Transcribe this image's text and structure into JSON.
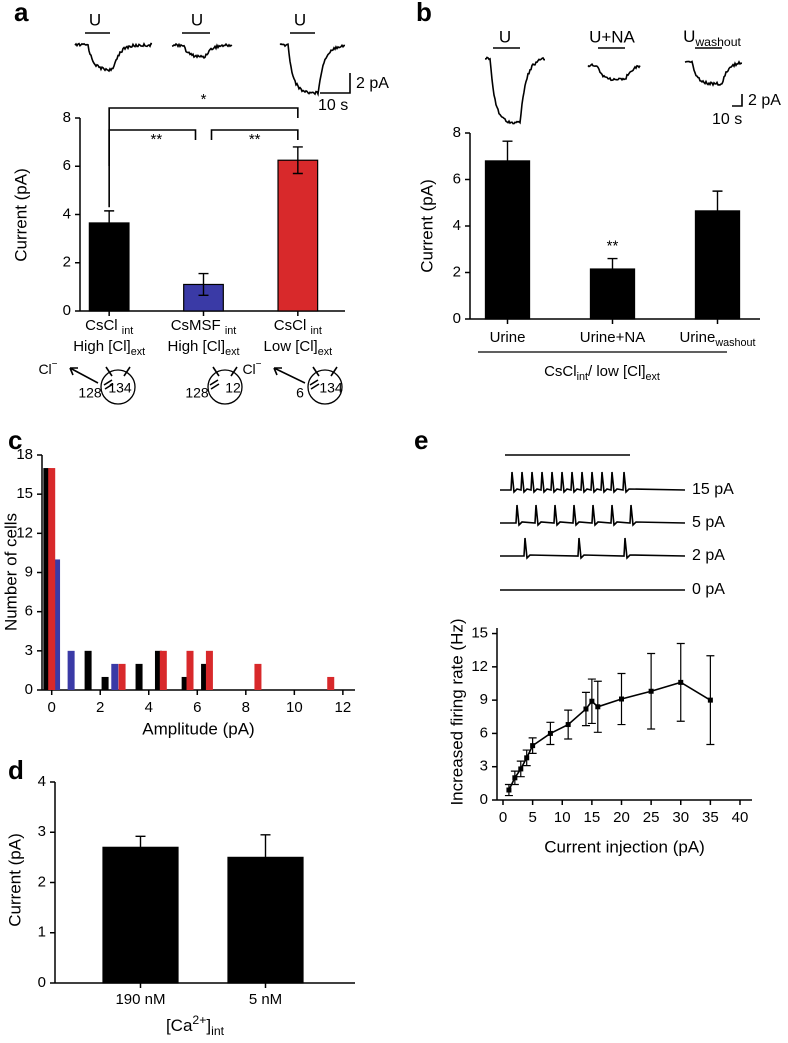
{
  "chart_data": [
    {
      "panel": "a",
      "type": "bar",
      "ylabel": "Current (pA)",
      "categories": [
        [
          {
            "t": "CsCl "
          },
          {
            "sub": "int"
          }
        ],
        [
          {
            "t": "CsMSF "
          },
          {
            "sub": "int"
          }
        ],
        [
          {
            "t": "CsCl "
          },
          {
            "sub": "int"
          }
        ]
      ],
      "conditions": [
        [
          {
            "t": "High [Cl]"
          },
          {
            "sub": "ext"
          }
        ],
        [
          {
            "t": "High [Cl]"
          },
          {
            "sub": "ext"
          }
        ],
        [
          {
            "t": "Low [Cl]"
          },
          {
            "sub": "ext"
          }
        ]
      ],
      "values": [
        3.65,
        1.1,
        6.25
      ],
      "errors": [
        0.5,
        0.45,
        0.55
      ],
      "colors": [
        "#000000",
        "#3a3aa6",
        "#d8292b"
      ],
      "ylim": [
        0,
        8
      ],
      "yticks": [
        0,
        2,
        4,
        6,
        8
      ],
      "significance": [
        "*",
        "**",
        "**"
      ],
      "trace_labels": [
        "U",
        "U",
        "U"
      ],
      "scale_labels": [
        "2 pA",
        "10 s"
      ],
      "cell_labels": [
        [
          [
            {
              "t": "Cl"
            },
            {
              "sup": "−"
            }
          ],
          128,
          134
        ],
        [
          128,
          12
        ],
        [
          [
            {
              "t": "Cl"
            },
            {
              "sup": "−"
            }
          ],
          6,
          134
        ]
      ]
    },
    {
      "panel": "b",
      "type": "bar",
      "ylabel": "Current (pA)",
      "categories": [
        "Urine",
        "Urine+NA",
        [
          {
            "t": "Urine"
          },
          {
            "sub": "washout"
          }
        ]
      ],
      "values": [
        6.8,
        2.15,
        4.65
      ],
      "errors": [
        0.85,
        0.45,
        0.85
      ],
      "color": "#000000",
      "ylim": [
        0,
        8
      ],
      "yticks": [
        0,
        2,
        4,
        6,
        8
      ],
      "significance": [
        "**"
      ],
      "xlabel": [
        {
          "t": "CsCl"
        },
        {
          "sub": "int"
        },
        {
          "t": "/ low [Cl]"
        },
        {
          "sub": "ext"
        }
      ],
      "trace_labels": [
        "U",
        "U+NA",
        [
          {
            "t": "U"
          },
          {
            "sub": "washout"
          }
        ]
      ],
      "scale_labels": [
        "2 pA",
        "10 s"
      ]
    },
    {
      "panel": "c",
      "type": "bar",
      "xlabel": "Amplitude (pA)",
      "ylabel": "Number of cells",
      "series": [
        {
          "color": "#000000",
          "x": [
            -0.2,
            1.5,
            2.2,
            3.6,
            4.4,
            5.5,
            6.3
          ],
          "values": [
            17,
            3,
            1,
            2,
            3,
            1,
            2
          ]
        },
        {
          "color": "#3a3aa6",
          "x": [
            0.2,
            0.8,
            2.6
          ],
          "values": [
            10,
            3,
            2
          ]
        },
        {
          "color": "#d8292b",
          "x": [
            0.0,
            2.9,
            4.6,
            5.7,
            6.5,
            8.5,
            11.5
          ],
          "values": [
            17,
            2,
            3,
            3,
            3,
            2,
            1
          ]
        }
      ],
      "xlim": [
        -0.4,
        12.5
      ],
      "xticks": [
        0,
        2,
        4,
        6,
        8,
        10,
        12
      ],
      "ylim": [
        0,
        18
      ],
      "yticks": [
        0,
        3,
        6,
        9,
        12,
        15,
        18
      ]
    },
    {
      "panel": "d",
      "type": "bar",
      "ylabel": "Current (pA)",
      "categories": [
        "190 nM",
        "5 nM"
      ],
      "values": [
        2.7,
        2.5
      ],
      "errors": [
        0.22,
        0.45
      ],
      "color": "#000000",
      "ylim": [
        0,
        4
      ],
      "yticks": [
        0,
        1,
        2,
        3,
        4
      ],
      "xlabel": [
        {
          "t": "[Ca"
        },
        {
          "sup": "2+"
        },
        {
          "t": "]"
        },
        {
          "sub": "int"
        }
      ]
    },
    {
      "panel": "e",
      "type": "line",
      "xlabel": "Current injection (pA)",
      "ylabel": "Increased firing rate (Hz)",
      "x": [
        1,
        2,
        3,
        4,
        5,
        8,
        11,
        14,
        15,
        16,
        20,
        25,
        30,
        35
      ],
      "values": [
        0.9,
        2.0,
        2.8,
        3.8,
        4.9,
        6.0,
        6.8,
        8.2,
        8.9,
        8.4,
        9.1,
        9.8,
        10.6,
        9.0
      ],
      "errors": [
        0.5,
        0.6,
        0.7,
        0.7,
        0.7,
        1.0,
        1.3,
        1.5,
        2.0,
        2.3,
        2.3,
        3.4,
        3.5,
        4.0
      ],
      "color": "#000000",
      "xlim": [
        0,
        40
      ],
      "xticks": [
        0,
        5,
        10,
        15,
        20,
        25,
        30,
        35,
        40
      ],
      "ylim": [
        0,
        15.5
      ],
      "yticks": [
        0,
        3,
        6,
        9,
        12,
        15
      ],
      "trace_labels": [
        "15 pA",
        "5 pA",
        "2 pA",
        "0 pA"
      ]
    }
  ]
}
